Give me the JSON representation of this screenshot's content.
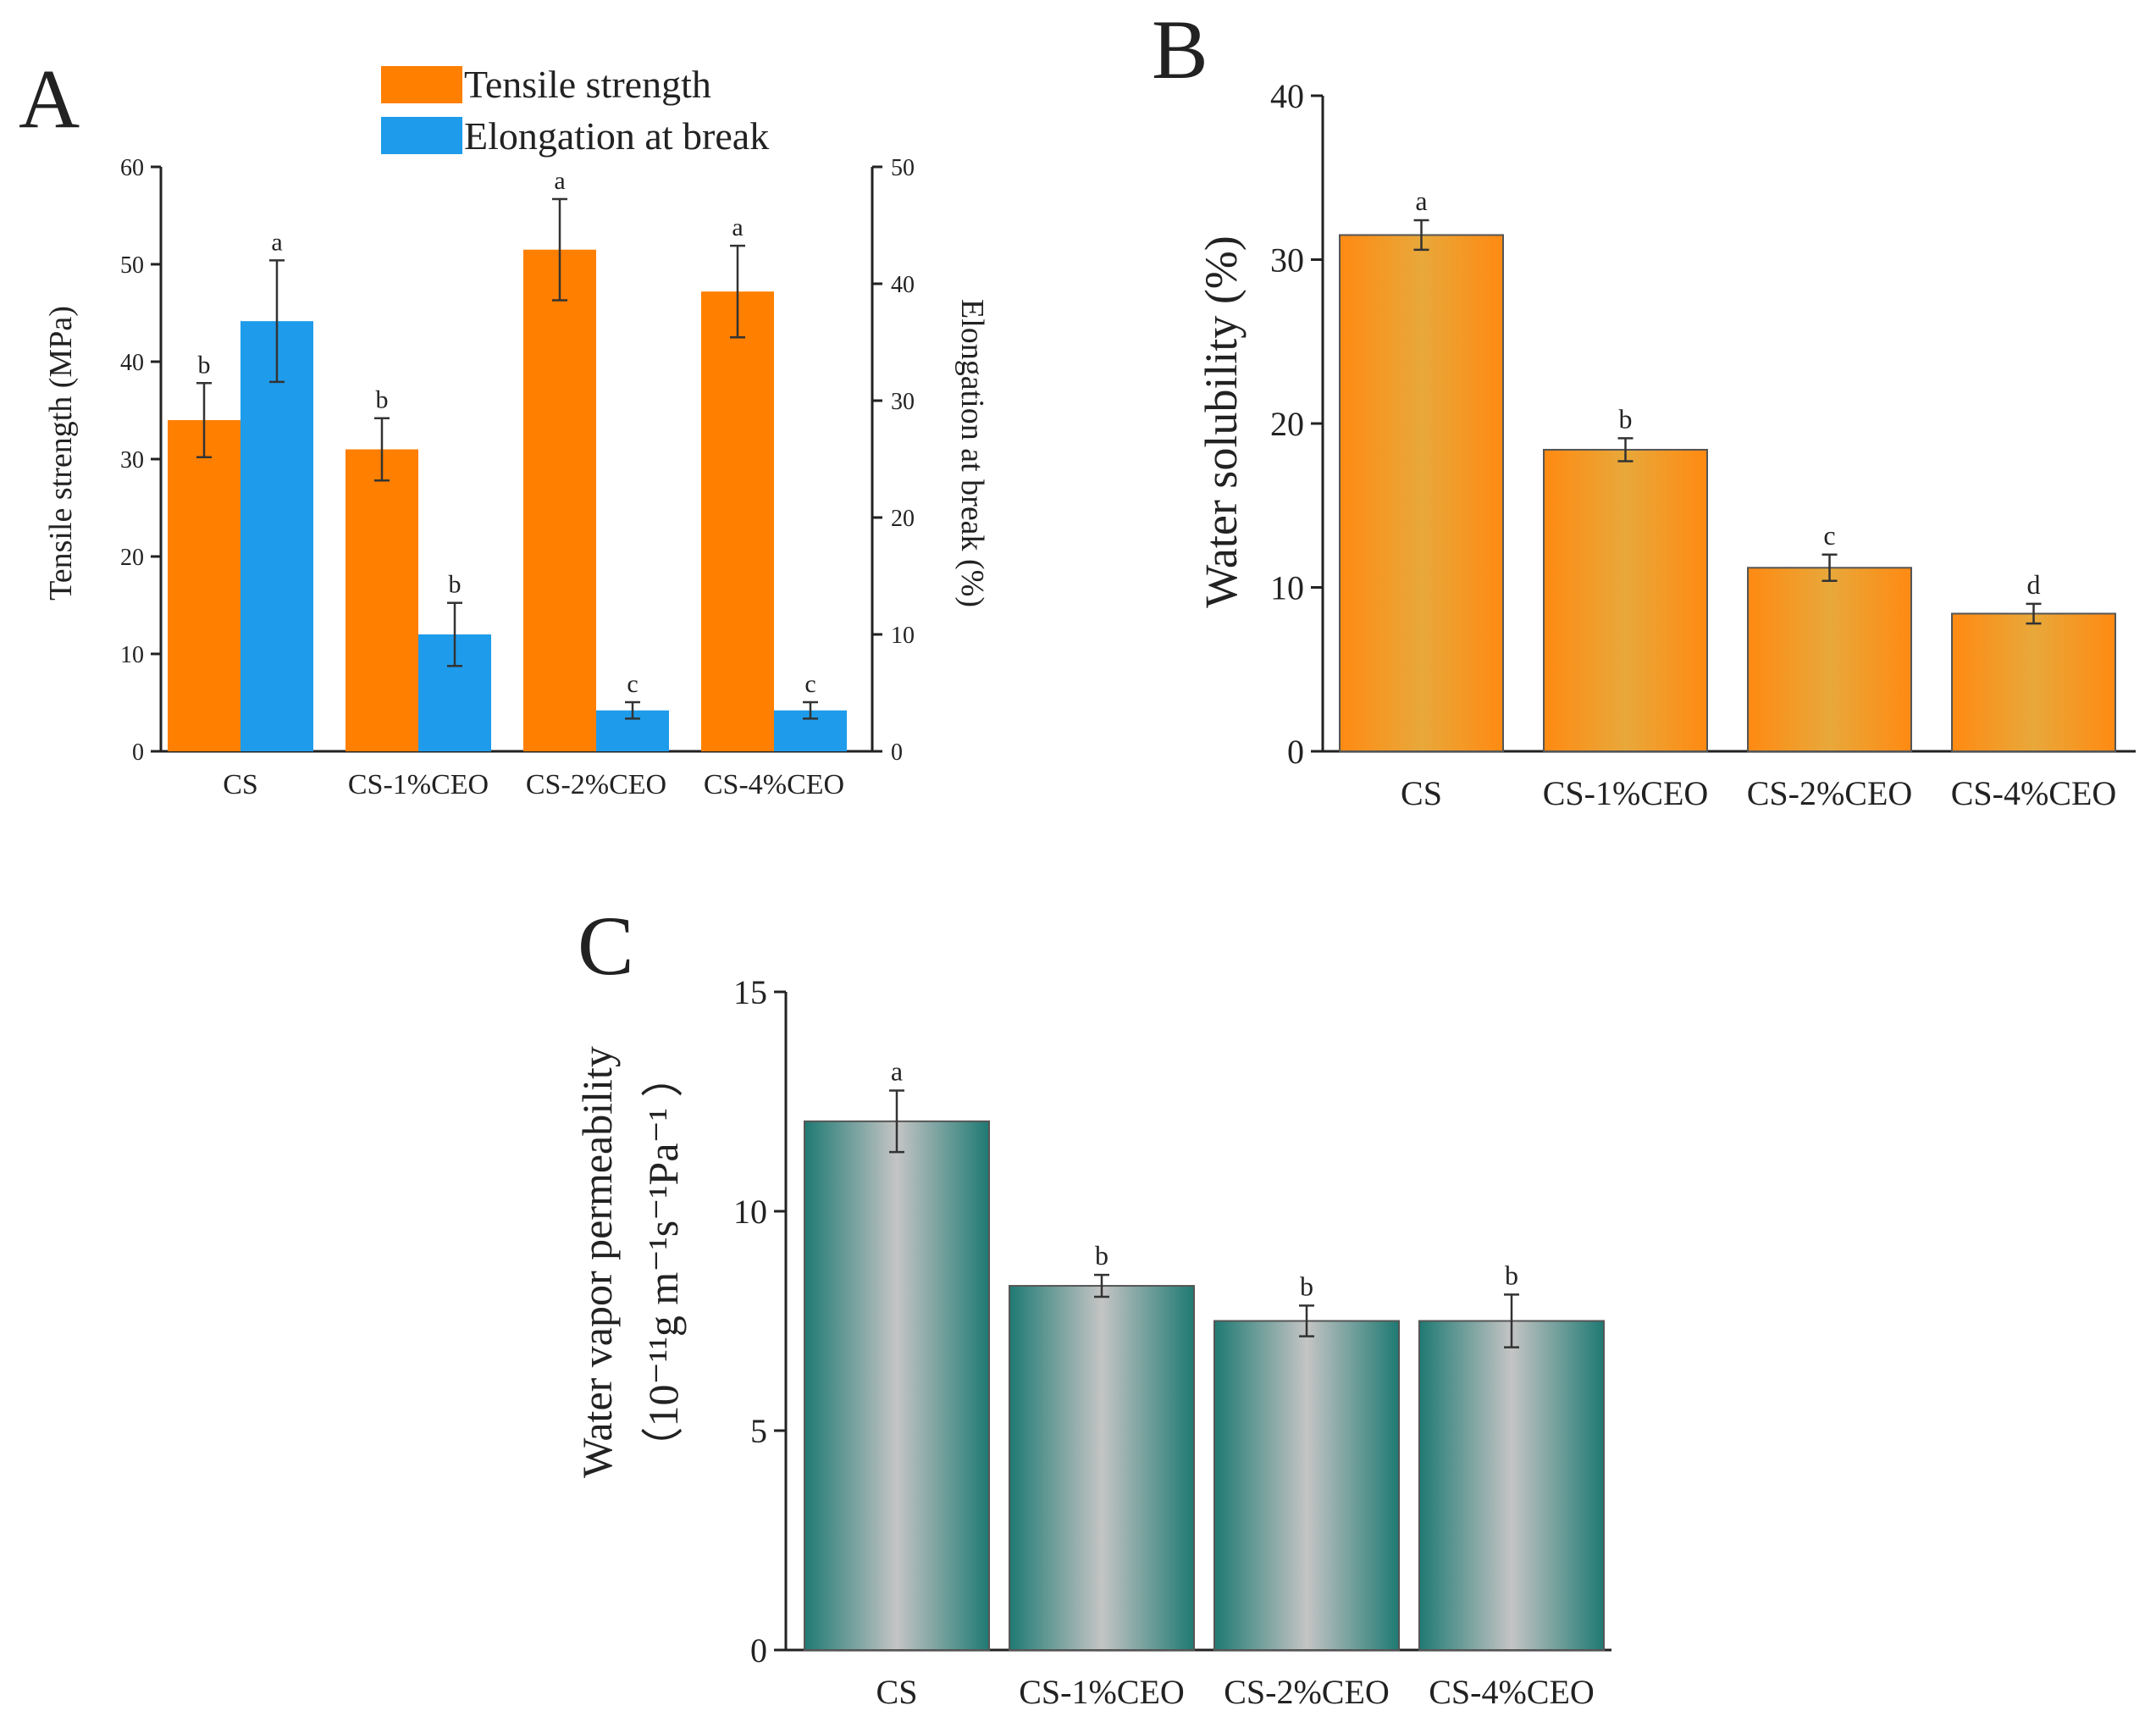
{
  "colors": {
    "tensile": "#FF7F00",
    "elongation": "#1E9CEB",
    "solubility_edge": "#FF8A12",
    "solubility_center": "#E8A83A",
    "wvp_edge": "#1F7A73",
    "wvp_center": "#C4C4C4"
  },
  "chart_data": [
    {
      "panel": "A",
      "type": "bar",
      "categories": [
        "CS",
        "CS-1%CEO",
        "CS-2%CEO",
        "CS-4%CEO"
      ],
      "legend": [
        "Tensile strength",
        "Elongation at break"
      ],
      "legend_position": "top",
      "series": [
        {
          "name": "Tensile strength",
          "axis": "left",
          "values": [
            34.0,
            31.0,
            51.5,
            47.2
          ],
          "errors": [
            3.8,
            3.2,
            5.2,
            4.7
          ],
          "letters": [
            "b",
            "b",
            "a",
            "a"
          ]
        },
        {
          "name": "Elongation at break",
          "axis": "right",
          "values": [
            36.8,
            10.0,
            3.5,
            3.5
          ],
          "errors": [
            5.2,
            2.7,
            0.7,
            0.7
          ],
          "letters": [
            "a",
            "b",
            "c",
            "c"
          ]
        }
      ],
      "ylabel": "Tensile strength (MPa)",
      "ylim": [
        0,
        60
      ],
      "yticks": [
        0,
        10,
        20,
        30,
        40,
        50,
        60
      ],
      "y2label": "Elongation at break (%)",
      "y2lim": [
        0,
        50
      ],
      "y2ticks": [
        0,
        10,
        20,
        30,
        40,
        50
      ],
      "xlabel": "",
      "grid": false
    },
    {
      "panel": "B",
      "type": "bar",
      "categories": [
        "CS",
        "CS-1%CEO",
        "CS-2%CEO",
        "CS-4%CEO"
      ],
      "series": [
        {
          "name": "Water solubility",
          "values": [
            31.5,
            18.4,
            11.2,
            8.4
          ],
          "errors": [
            0.9,
            0.7,
            0.8,
            0.6
          ],
          "letters": [
            "a",
            "b",
            "c",
            "d"
          ]
        }
      ],
      "ylabel": "Water solubility (%)",
      "ylim": [
        0,
        40
      ],
      "yticks": [
        0,
        10,
        20,
        30,
        40
      ],
      "xlabel": "",
      "grid": false
    },
    {
      "panel": "C",
      "type": "bar",
      "categories": [
        "CS",
        "CS-1%CEO",
        "CS-2%CEO",
        "CS-4%CEO"
      ],
      "series": [
        {
          "name": "Water vapor permeability",
          "values": [
            12.05,
            8.3,
            7.5,
            7.5
          ],
          "errors": [
            0.7,
            0.25,
            0.35,
            0.6
          ],
          "letters": [
            "a",
            "b",
            "b",
            "b"
          ]
        }
      ],
      "ylabel": "Water vapor permeability",
      "ylabel2": "（10⁻¹¹g m⁻¹s⁻¹Pa⁻¹ ）",
      "ylim": [
        0,
        15
      ],
      "yticks": [
        0,
        5,
        10,
        15
      ],
      "xlabel": "",
      "grid": false
    }
  ]
}
